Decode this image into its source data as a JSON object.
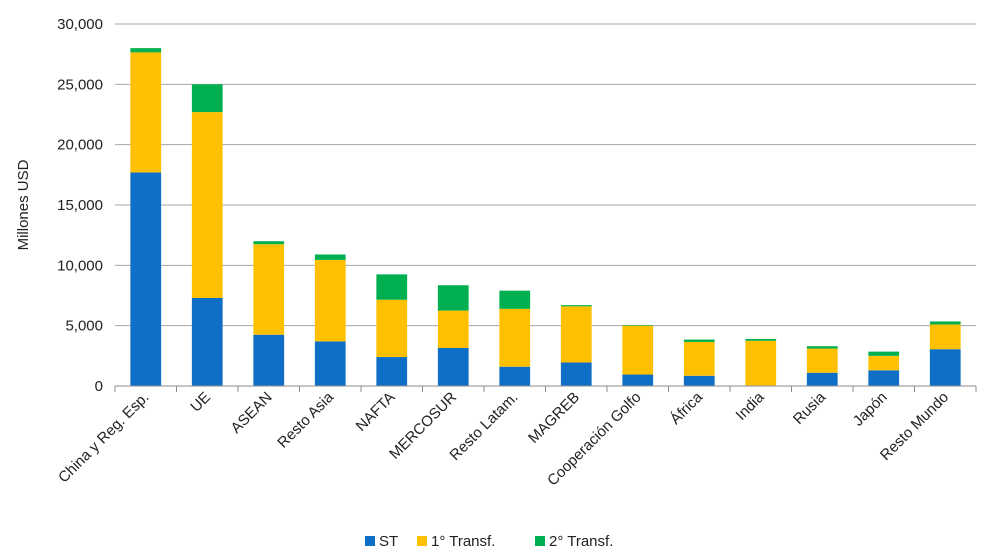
{
  "chart_data": {
    "type": "bar",
    "stacked": true,
    "ylabel": "Millones  USD",
    "ylim": [
      0,
      30000
    ],
    "yticks": [
      0,
      5000,
      10000,
      15000,
      20000,
      25000,
      30000
    ],
    "ytick_labels": [
      "0",
      "5,000",
      "10,000",
      "15,000",
      "20,000",
      "25,000",
      "30,000"
    ],
    "grid": true,
    "legend_position": "bottom",
    "categories": [
      "China y Reg. Esp.",
      "UE",
      "ASEAN",
      "Resto Asia",
      "NAFTA",
      "MERCOSUR",
      "Resto Latam.",
      "MAGREB",
      "Cooperación Golfo",
      "África",
      "India",
      "Rusia",
      "Japón",
      "Resto Mundo"
    ],
    "series": [
      {
        "name": "ST",
        "color": "#0f6fc6",
        "values": [
          17700,
          7300,
          4250,
          3700,
          2400,
          3150,
          1600,
          1950,
          950,
          850,
          50,
          1100,
          1300,
          3050
        ]
      },
      {
        "name": "1° Transf.",
        "color": "#ffc000",
        "values": [
          9950,
          15400,
          7500,
          6750,
          4750,
          3100,
          4800,
          4650,
          4050,
          2800,
          3700,
          2000,
          1200,
          2050
        ]
      },
      {
        "name": "2° Transf.",
        "color": "#00b050",
        "values": [
          350,
          2300,
          250,
          450,
          2100,
          2100,
          1500,
          100,
          50,
          200,
          150,
          200,
          350,
          250
        ]
      }
    ]
  }
}
